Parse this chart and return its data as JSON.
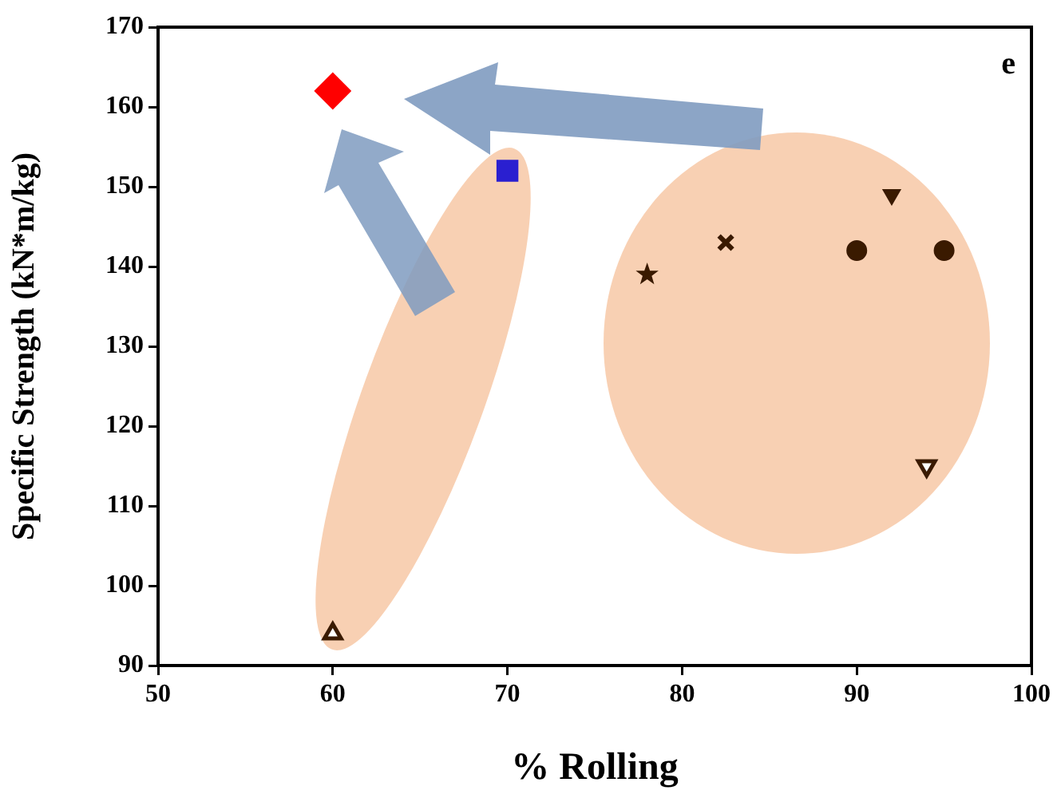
{
  "chart_data": {
    "type": "scatter",
    "xlabel": "% Rolling",
    "ylabel": "Specific Strength (kN*m/kg)",
    "annotations": [
      "e"
    ],
    "xlim": [
      50,
      100
    ],
    "xticks": [
      50,
      60,
      70,
      80,
      90,
      100
    ],
    "ylim": [
      90,
      170
    ],
    "yticks": [
      90,
      100,
      110,
      120,
      130,
      140,
      150,
      160,
      170
    ],
    "grid": false,
    "legend": false,
    "series": [
      {
        "x": [
          60
        ],
        "values": [
          162
        ],
        "color": "#ff0000",
        "marker": "diamond"
      },
      {
        "x": [
          70
        ],
        "values": [
          152
        ],
        "color": "#2a1fd0",
        "marker": "square"
      },
      {
        "x": [
          60
        ],
        "values": [
          94
        ],
        "color": "#3a1a00",
        "marker": "triangle-open"
      },
      {
        "x": [
          78
        ],
        "values": [
          139
        ],
        "color": "#3a1a00",
        "marker": "star"
      },
      {
        "x": [
          82.5
        ],
        "values": [
          143
        ],
        "color": "#3a1a00",
        "marker": "cross"
      },
      {
        "x": [
          90
        ],
        "values": [
          142
        ],
        "color": "#3a1a00",
        "marker": "circle"
      },
      {
        "x": [
          95
        ],
        "values": [
          142
        ],
        "color": "#3a1a00",
        "marker": "circle"
      },
      {
        "x": [
          92
        ],
        "values": [
          149
        ],
        "color": "#3a1a00",
        "marker": "triangle-down"
      },
      {
        "x": [
          94
        ],
        "values": [
          115
        ],
        "color": "#3a1a00",
        "marker": "triangle-down-open"
      }
    ]
  }
}
